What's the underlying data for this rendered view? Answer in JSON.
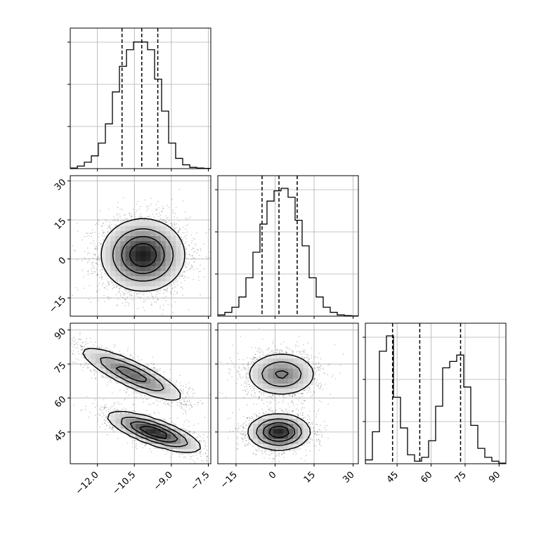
{
  "chart_data": {
    "type": "corner",
    "grid": true,
    "parameters": [
      {
        "index": 0,
        "range": [
          -13.1,
          -7.4
        ],
        "ticks": [
          -12.0,
          -10.5,
          -9.0,
          -7.5
        ],
        "tick_labels": [
          "−12.0",
          "−10.5",
          "−9.0",
          "−7.5"
        ],
        "quantiles": [
          -11.0,
          -10.2,
          -9.55
        ],
        "histogram": [
          0.005,
          0.02,
          0.05,
          0.1,
          0.2,
          0.35,
          0.6,
          0.8,
          0.93,
          0.99,
          0.99,
          0.93,
          0.7,
          0.45,
          0.2,
          0.08,
          0.03,
          0.01,
          0.005,
          0.002
        ]
      },
      {
        "index": 1,
        "range": [
          -22,
          32
        ],
        "ticks": [
          -15,
          0,
          15,
          30
        ],
        "tick_labels": [
          "−15",
          "0",
          "15",
          "30"
        ],
        "quantiles": [
          -5,
          1.5,
          8.5
        ],
        "histogram": [
          0.01,
          0.03,
          0.07,
          0.15,
          0.3,
          0.5,
          0.72,
          0.9,
          0.98,
          1.0,
          0.93,
          0.75,
          0.55,
          0.3,
          0.15,
          0.07,
          0.03,
          0.01,
          0.005,
          0.002
        ]
      },
      {
        "index": 2,
        "range": [
          31,
          93
        ],
        "ticks": [
          45,
          60,
          75,
          90
        ],
        "tick_labels": [
          "45",
          "60",
          "75",
          "90"
        ],
        "quantiles": [
          43,
          55,
          73
        ],
        "histogram": [
          0.03,
          0.25,
          0.88,
          1.0,
          0.52,
          0.28,
          0.07,
          0.02,
          0.05,
          0.18,
          0.45,
          0.75,
          0.8,
          0.85,
          0.6,
          0.3,
          0.12,
          0.05,
          0.02,
          0.005
        ]
      }
    ],
    "pairs": [
      {
        "x_param": 0,
        "y_param": 1,
        "clusters": [
          {
            "center": [
              -10.15,
              1.5
            ],
            "sx": 0.85,
            "sy": 7.0,
            "rho": 0.0,
            "weight": 1.0
          }
        ]
      },
      {
        "x_param": 0,
        "y_param": 2,
        "clusters": [
          {
            "center": [
              -10.6,
              70.5
            ],
            "sx": 1.1,
            "sy": 6.3,
            "rho": -0.85,
            "weight": 0.48
          },
          {
            "center": [
              -9.7,
              45.0
            ],
            "sx": 0.95,
            "sy": 4.5,
            "rho": -0.75,
            "weight": 0.52
          }
        ]
      },
      {
        "x_param": 1,
        "y_param": 2,
        "clusters": [
          {
            "center": [
              2.5,
              70.5
            ],
            "sx": 7.0,
            "sy": 5.0,
            "rho": 0.0,
            "weight": 0.48
          },
          {
            "center": [
              1.5,
              45.0
            ],
            "sx": 6.0,
            "sy": 4.0,
            "rho": 0.0,
            "weight": 0.52
          }
        ]
      }
    ]
  }
}
